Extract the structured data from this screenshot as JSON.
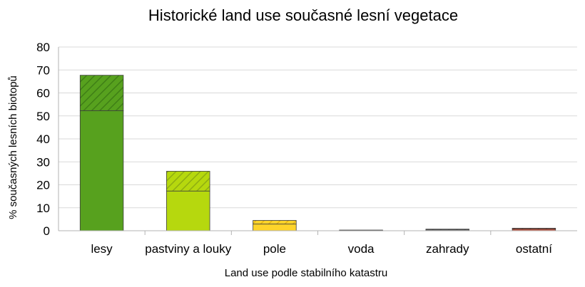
{
  "chart_data": {
    "type": "bar",
    "stacked": true,
    "title": "Historické land use současné lesní vegetace",
    "xlabel": "Land use podle stabilního katastru",
    "ylabel": "% současných lesních biotopů",
    "ylim": [
      0,
      80
    ],
    "yticks": [
      "0",
      "10",
      "20",
      "30",
      "40",
      "50",
      "60",
      "70",
      "80"
    ],
    "grid": true,
    "categories": [
      "lesy",
      "pastviny a louky",
      "pole",
      "voda",
      "zahrady",
      "ostatní"
    ],
    "series": [
      {
        "style": "solid",
        "values": [
          52.3,
          17.3,
          2.9,
          0.2,
          0.4,
          0.7
        ]
      },
      {
        "style": "hatched",
        "values": [
          15.4,
          8.6,
          1.6,
          0.1,
          0.3,
          0.4
        ]
      }
    ],
    "colors": [
      "#57a11e",
      "#b6d80e",
      "#ffd42a",
      "#7a7a7a",
      "#8c8c8c",
      "#c9533d"
    ],
    "hatch_colors": [
      "#3f7f16",
      "#8fae12",
      "#e3b515",
      "#555555",
      "#555555",
      "#9a3a28"
    ]
  }
}
